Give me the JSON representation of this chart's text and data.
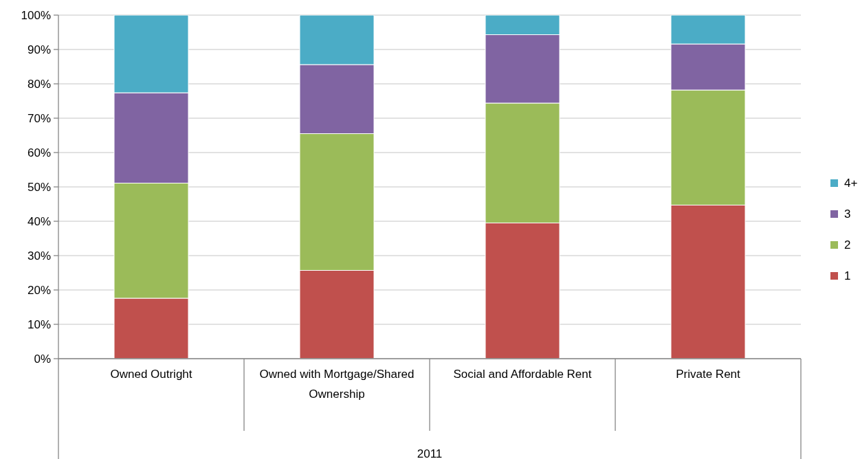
{
  "chart_data": {
    "type": "bar",
    "stacked": true,
    "categories": [
      "Owned Outright",
      "Owned with Mortgage/Shared Ownership",
      "Social and Affordable Rent",
      "Private Rent"
    ],
    "xlabel": "2011",
    "series": [
      {
        "name": "1",
        "color": "#c0504d",
        "values": [
          17.6,
          25.7,
          39.5,
          44.7
        ]
      },
      {
        "name": "2",
        "color": "#9bbb59",
        "values": [
          33.5,
          39.8,
          34.9,
          33.5
        ]
      },
      {
        "name": "3",
        "color": "#8064a2",
        "values": [
          26.3,
          20.1,
          19.9,
          13.4
        ]
      },
      {
        "name": "4+",
        "color": "#4bacc6",
        "values": [
          22.6,
          14.4,
          5.7,
          8.4
        ]
      }
    ],
    "ylim": [
      0,
      100
    ],
    "yticks": [
      {
        "value": 0,
        "label": "0%"
      },
      {
        "value": 10,
        "label": "10%"
      },
      {
        "value": 20,
        "label": "20%"
      },
      {
        "value": 30,
        "label": "30%"
      },
      {
        "value": 40,
        "label": "40%"
      },
      {
        "value": 50,
        "label": "50%"
      },
      {
        "value": 60,
        "label": "60%"
      },
      {
        "value": 70,
        "label": "70%"
      },
      {
        "value": 80,
        "label": "80%"
      },
      {
        "value": 90,
        "label": "90%"
      },
      {
        "value": 100,
        "label": "100%"
      }
    ],
    "grid": "y",
    "legend": "right"
  }
}
